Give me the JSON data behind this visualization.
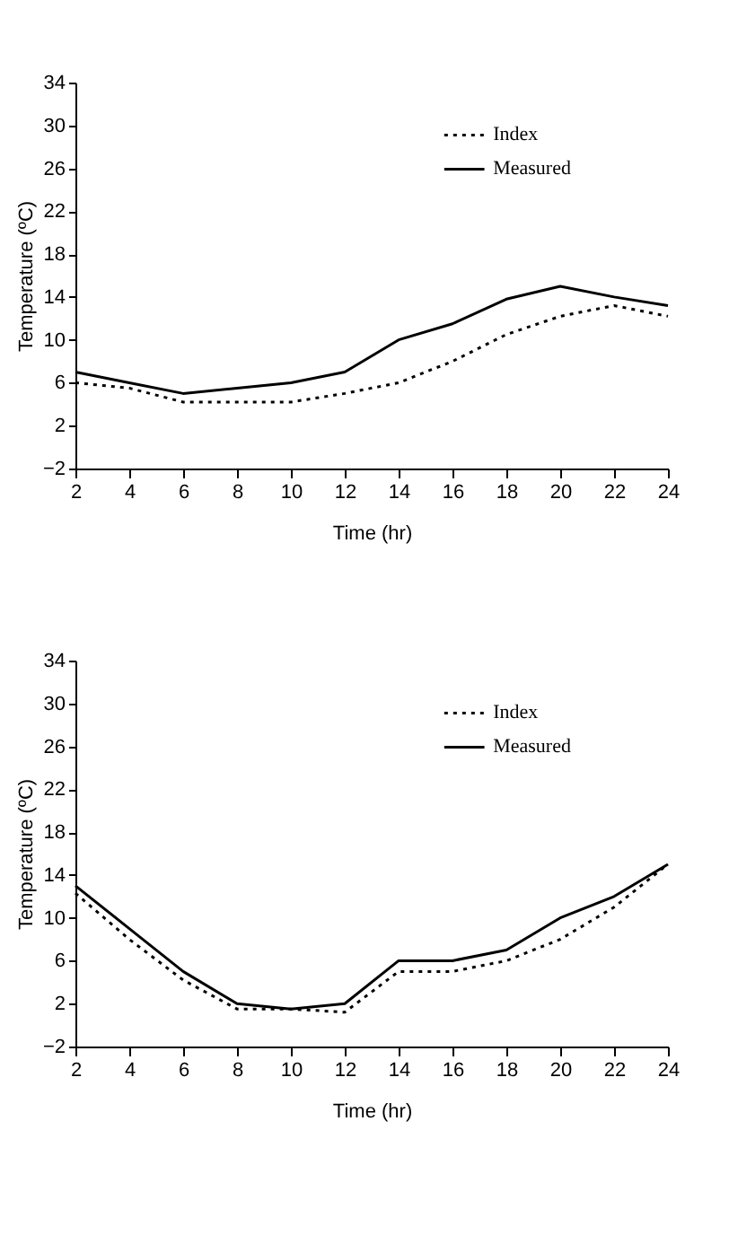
{
  "chart_data": [
    {
      "type": "line",
      "xlabel": "Time (hr)",
      "ylabel": "Temperature (ºC)",
      "x": [
        2,
        4,
        6,
        8,
        10,
        12,
        14,
        16,
        18,
        20,
        22,
        24
      ],
      "series": [
        {
          "name": "Index",
          "color": "#000000",
          "line_style": "dotted",
          "values": [
            6,
            5.5,
            4.2,
            4.2,
            4.2,
            5,
            6,
            8,
            10.5,
            12.2,
            13.2,
            12.2
          ]
        },
        {
          "name": "Measured",
          "color": "#000000",
          "line_style": "solid",
          "values": [
            7,
            6,
            5,
            5.5,
            6,
            7,
            10,
            11.5,
            13.8,
            15,
            14,
            13.2
          ]
        }
      ],
      "xlim": [
        2,
        24
      ],
      "xticks": [
        2,
        4,
        6,
        8,
        10,
        12,
        14,
        16,
        18,
        20,
        22,
        24
      ],
      "ylim": [
        -2,
        34
      ],
      "yticks": [
        -2,
        2,
        6,
        10,
        14,
        18,
        22,
        26,
        30,
        34
      ],
      "grid": false,
      "legend": "top right",
      "marker": "none"
    },
    {
      "type": "line",
      "xlabel": "Time (hr)",
      "ylabel": "Temperature (ºC)",
      "x": [
        2,
        4,
        6,
        8,
        10,
        12,
        14,
        16,
        18,
        20,
        22,
        24
      ],
      "series": [
        {
          "name": "Index",
          "color": "#000000",
          "line_style": "dotted",
          "values": [
            12.3,
            8,
            4.2,
            1.5,
            1.5,
            1.2,
            5,
            5,
            6,
            8,
            11,
            15
          ]
        },
        {
          "name": "Measured",
          "color": "#000000",
          "line_style": "solid",
          "values": [
            13,
            9,
            5,
            2,
            1.5,
            2,
            6,
            6,
            7,
            10,
            12,
            15
          ]
        }
      ],
      "xlim": [
        2,
        24
      ],
      "xticks": [
        2,
        4,
        6,
        8,
        10,
        12,
        14,
        16,
        18,
        20,
        22,
        24
      ],
      "ylim": [
        -2,
        34
      ],
      "yticks": [
        -2,
        2,
        6,
        10,
        14,
        18,
        22,
        26,
        30,
        34
      ],
      "grid": false,
      "legend": "top right",
      "marker": "none"
    }
  ]
}
